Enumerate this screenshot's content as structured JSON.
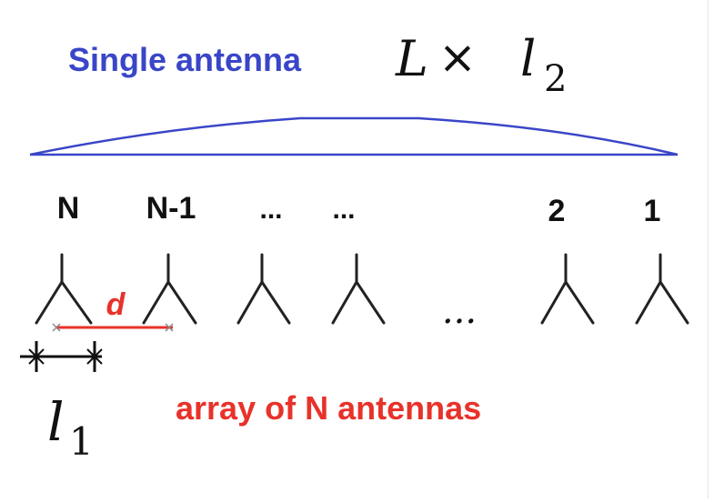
{
  "title": {
    "single_antenna_label": "Single antenna",
    "single_antenna_color": "#3a46c8",
    "length_expr": {
      "base": "L",
      "times": "×",
      "var": "l",
      "sub": "2"
    }
  },
  "element_labels": [
    "N",
    "N-1",
    "...",
    "...",
    "2",
    "1"
  ],
  "ellipsis_between": "...",
  "spacing_label": "d",
  "element_width_label": {
    "var": "l",
    "sub": "1"
  },
  "caption": "array of N antennas",
  "caption_color": "#e8322a",
  "antenna_color": "#222222",
  "spacing_color": "#e8322a"
}
